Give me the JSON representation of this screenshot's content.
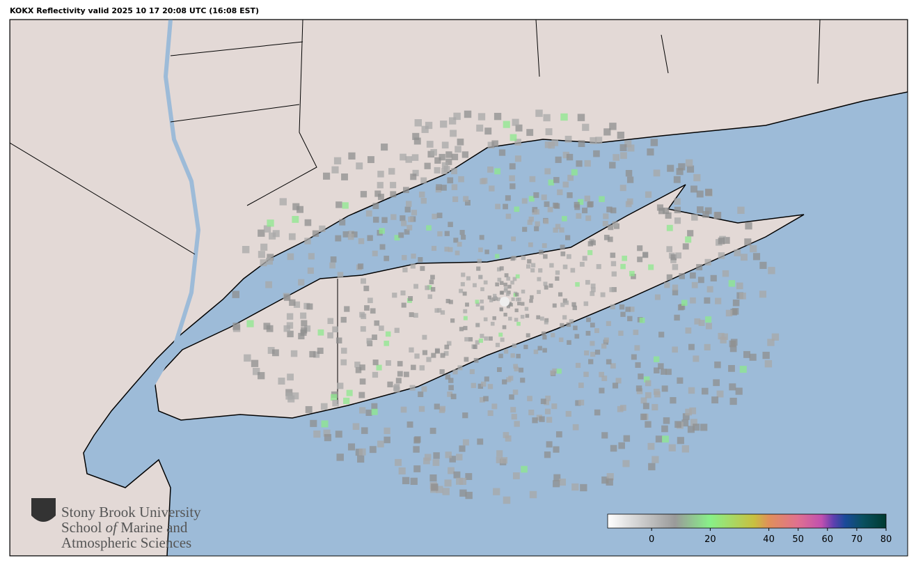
{
  "title": "KOKX Reflectivity valid 2025 10 17 20:08 UTC (16:08 EST)",
  "logo": {
    "line1": "Stony Brook University",
    "line2a": "School",
    "line2b": "of",
    "line2c": "Marine and",
    "line3": "Atmospheric Sciences"
  },
  "colorbar": {
    "range": [
      -15,
      80
    ],
    "ticks": [
      0,
      20,
      40,
      50,
      60,
      70,
      80
    ],
    "stops": [
      {
        "value": -15,
        "color": "#ffffff"
      },
      {
        "value": 8,
        "color": "#9a9a9a"
      },
      {
        "value": 20,
        "color": "#88f088"
      },
      {
        "value": 35,
        "color": "#c8c040"
      },
      {
        "value": 40,
        "color": "#e0905a"
      },
      {
        "value": 50,
        "color": "#e07090"
      },
      {
        "value": 58,
        "color": "#c050b0"
      },
      {
        "value": 62,
        "color": "#6040b0"
      },
      {
        "value": 66,
        "color": "#1a4a9a"
      },
      {
        "value": 72,
        "color": "#0a5060"
      },
      {
        "value": 80,
        "color": "#003a30"
      }
    ]
  }
}
